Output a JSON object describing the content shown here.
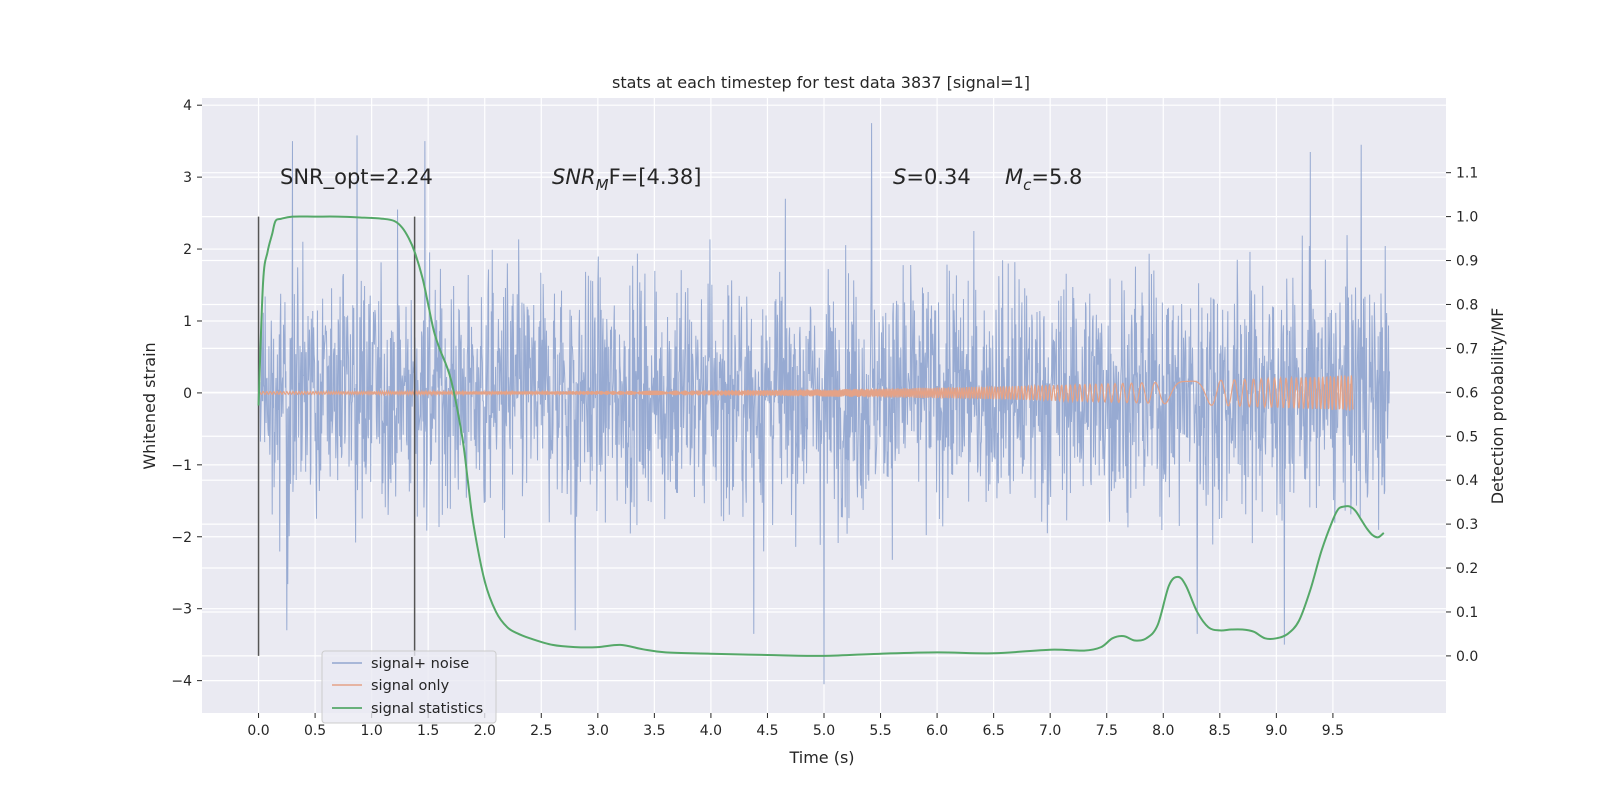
{
  "chart_data": {
    "type": "line",
    "title": "stats at each timestep for test data 3837 [signal=1]",
    "xlabel": "Time (s)",
    "ylabel": "Whitened strain",
    "ylabel_right": "Detection probability/MF",
    "xlim": [
      -0.5,
      10.5
    ],
    "ylim": [
      -4.45,
      4.1
    ],
    "ylim_right": [
      -0.13,
      1.27
    ],
    "grid": true,
    "legend_position": "lower-left",
    "x_ticks": [
      "0.0",
      "0.5",
      "1.0",
      "1.5",
      "2.0",
      "2.5",
      "3.0",
      "3.5",
      "4.0",
      "4.5",
      "5.0",
      "5.5",
      "6.0",
      "6.5",
      "7.0",
      "7.5",
      "8.0",
      "8.5",
      "9.0",
      "9.5"
    ],
    "y_ticks": [
      "−4",
      "−3",
      "−2",
      "−1",
      "0",
      "1",
      "2",
      "3",
      "4"
    ],
    "y_ticks_right": [
      "0.0",
      "0.1",
      "0.2",
      "0.3",
      "0.4",
      "0.5",
      "0.6",
      "0.7",
      "0.8",
      "0.9",
      "1.0",
      "1.1"
    ],
    "annotations": {
      "snr_opt": "SNR_opt=2.24",
      "snr_mf_var": "SNR",
      "snr_mf_sub": "M",
      "snr_mf_tail": "F=[4.38]",
      "s_var": "S",
      "s_val": "=0.34",
      "mc_var": "M",
      "mc_sub": "c",
      "mc_val": "=5.8"
    },
    "vlines_x": [
      0.0,
      1.38
    ],
    "series": [
      {
        "name": "signal+ noise",
        "color": "#92a6d0",
        "x_range": [
          0.0,
          10.0
        ],
        "envelope_typical": [
          -1.8,
          2.2
        ],
        "peaks": [
          {
            "x": 0.3,
            "y": 3.5
          },
          {
            "x": 0.87,
            "y": 3.58
          },
          {
            "x": 1.47,
            "y": 3.5
          },
          {
            "x": 5.42,
            "y": 3.75
          },
          {
            "x": 9.75,
            "y": 3.45
          },
          {
            "x": 9.3,
            "y": 3.35
          },
          {
            "x": 5.0,
            "y": -4.05
          },
          {
            "x": 9.07,
            "y": -3.5
          },
          {
            "x": 8.3,
            "y": -3.35
          },
          {
            "x": 0.25,
            "y": -3.3
          },
          {
            "x": 2.8,
            "y": -3.3
          },
          {
            "x": 4.38,
            "y": -3.35
          }
        ]
      },
      {
        "name": "signal only",
        "color": "#e4a287",
        "x_range": [
          0.0,
          9.68
        ],
        "amplitude_start": 0.02,
        "amplitude_end": 0.25
      },
      {
        "name": "signal statistics",
        "color": "#55a868",
        "axis": "right",
        "x": [
          0.0,
          0.04,
          0.08,
          0.12,
          0.15,
          0.2,
          0.3,
          0.5,
          0.7,
          0.9,
          1.1,
          1.2,
          1.27,
          1.33,
          1.38,
          1.45,
          1.5,
          1.55,
          1.6,
          1.7,
          1.8,
          1.85,
          1.9,
          2.0,
          2.1,
          2.2,
          2.3,
          2.4,
          2.6,
          2.8,
          3.0,
          3.2,
          3.4,
          3.6,
          4.0,
          4.5,
          5.0,
          5.5,
          6.0,
          6.5,
          7.0,
          7.3,
          7.45,
          7.55,
          7.65,
          7.75,
          7.85,
          7.95,
          8.05,
          8.13,
          8.2,
          8.3,
          8.4,
          8.5,
          8.6,
          8.7,
          8.8,
          8.9,
          9.0,
          9.1,
          9.2,
          9.3,
          9.4,
          9.5,
          9.55,
          9.6,
          9.65,
          9.7,
          9.75,
          9.8,
          9.85,
          9.9,
          9.95
        ],
        "y": [
          0.57,
          0.85,
          0.92,
          0.96,
          0.99,
          0.995,
          1.0,
          1.0,
          1.0,
          0.998,
          0.995,
          0.99,
          0.975,
          0.95,
          0.92,
          0.86,
          0.8,
          0.74,
          0.7,
          0.63,
          0.5,
          0.4,
          0.3,
          0.17,
          0.1,
          0.065,
          0.05,
          0.04,
          0.025,
          0.02,
          0.02,
          0.025,
          0.015,
          0.008,
          0.005,
          0.002,
          0.0,
          0.005,
          0.008,
          0.006,
          0.014,
          0.012,
          0.02,
          0.04,
          0.045,
          0.035,
          0.04,
          0.07,
          0.16,
          0.18,
          0.16,
          0.1,
          0.065,
          0.058,
          0.06,
          0.06,
          0.055,
          0.04,
          0.04,
          0.05,
          0.08,
          0.15,
          0.24,
          0.31,
          0.335,
          0.34,
          0.34,
          0.33,
          0.31,
          0.29,
          0.275,
          0.27,
          0.28
        ]
      }
    ]
  }
}
